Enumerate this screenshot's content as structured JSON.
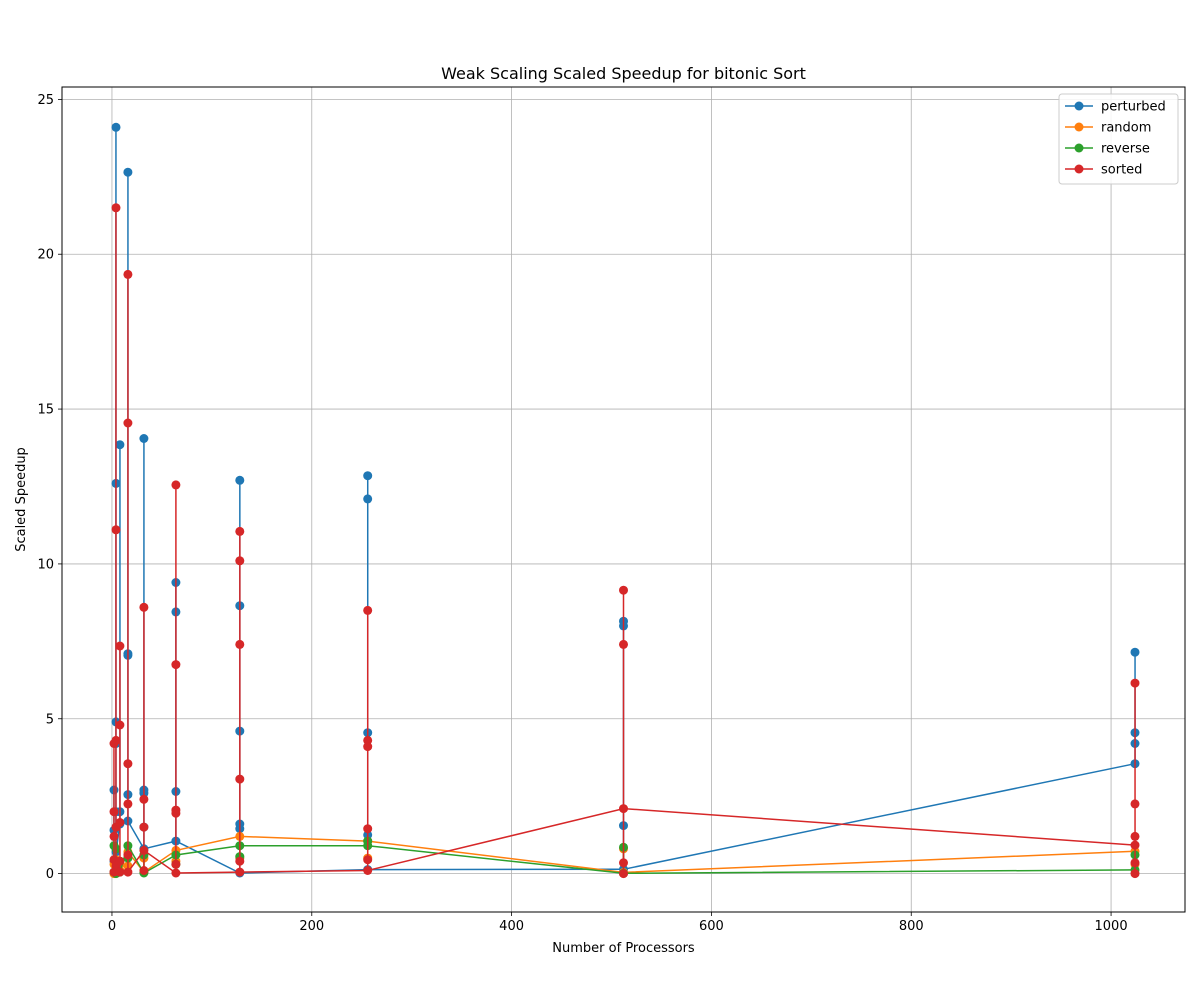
{
  "chart_data": {
    "type": "line",
    "title": "Weak Scaling Scaled Speedup for bitonic Sort",
    "xlabel": "Number of Processors",
    "ylabel": "Scaled Speedup",
    "xlim": [
      -50,
      1074
    ],
    "ylim": [
      -1.24,
      25.4
    ],
    "x_ticks": [
      0,
      200,
      400,
      600,
      800,
      1000
    ],
    "y_ticks": [
      0,
      5,
      10,
      15,
      20,
      25
    ],
    "grid": true,
    "legend_position": "top-right",
    "series": [
      {
        "name": "perturbed",
        "color": "#1f77b4",
        "line": [
          [
            2,
            0.4
          ],
          [
            4,
            0.7
          ],
          [
            8,
            1.6
          ],
          [
            16,
            1.7
          ],
          [
            32,
            0.8
          ],
          [
            64,
            1.05
          ],
          [
            128,
            0.02
          ],
          [
            256,
            0.13
          ],
          [
            512,
            0.14
          ],
          [
            1024,
            3.55
          ]
        ],
        "points": [
          [
            2,
            2.7
          ],
          [
            2,
            1.4
          ],
          [
            2,
            0.4
          ],
          [
            4,
            24.1
          ],
          [
            4,
            12.6
          ],
          [
            4,
            4.9
          ],
          [
            4,
            4.2
          ],
          [
            4,
            2.0
          ],
          [
            4,
            0.7
          ],
          [
            8,
            13.85
          ],
          [
            8,
            2.0
          ],
          [
            8,
            1.6
          ],
          [
            16,
            22.65
          ],
          [
            16,
            7.1
          ],
          [
            16,
            7.05
          ],
          [
            16,
            2.55
          ],
          [
            16,
            1.7
          ],
          [
            32,
            14.05
          ],
          [
            32,
            2.7
          ],
          [
            32,
            2.6
          ],
          [
            32,
            1.5
          ],
          [
            32,
            0.8
          ],
          [
            64,
            9.4
          ],
          [
            64,
            8.45
          ],
          [
            64,
            2.65
          ],
          [
            64,
            1.05
          ],
          [
            128,
            12.7
          ],
          [
            128,
            8.65
          ],
          [
            128,
            4.6
          ],
          [
            128,
            1.6
          ],
          [
            128,
            1.45
          ],
          [
            128,
            0.02
          ],
          [
            256,
            12.85
          ],
          [
            256,
            12.1
          ],
          [
            256,
            4.55
          ],
          [
            256,
            1.25
          ],
          [
            256,
            0.13
          ],
          [
            512,
            8.15
          ],
          [
            512,
            8.0
          ],
          [
            512,
            1.55
          ],
          [
            512,
            0.14
          ],
          [
            1024,
            7.15
          ],
          [
            1024,
            4.55
          ],
          [
            1024,
            4.2
          ],
          [
            1024,
            3.55
          ]
        ]
      },
      {
        "name": "random",
        "color": "#ff7f0e",
        "line": [
          [
            2,
            0.0
          ],
          [
            4,
            0.05
          ],
          [
            8,
            0.3
          ],
          [
            16,
            0.7
          ],
          [
            32,
            0.05
          ],
          [
            64,
            0.75
          ],
          [
            128,
            1.2
          ],
          [
            256,
            1.05
          ],
          [
            512,
            0.04
          ],
          [
            1024,
            0.72
          ]
        ],
        "points": [
          [
            2,
            0.0
          ],
          [
            2,
            0.3
          ],
          [
            4,
            0.05
          ],
          [
            4,
            0.45
          ],
          [
            8,
            0.3
          ],
          [
            8,
            0.1
          ],
          [
            16,
            0.7
          ],
          [
            16,
            0.25
          ],
          [
            32,
            0.05
          ],
          [
            32,
            0.5
          ],
          [
            64,
            0.75
          ],
          [
            64,
            0.4
          ],
          [
            128,
            1.2
          ],
          [
            128,
            0.5
          ],
          [
            256,
            1.05
          ],
          [
            256,
            0.5
          ],
          [
            512,
            0.04
          ],
          [
            512,
            0.8
          ],
          [
            1024,
            0.72
          ],
          [
            1024,
            0.3
          ]
        ]
      },
      {
        "name": "reverse",
        "color": "#2ca02c",
        "line": [
          [
            2,
            0.05
          ],
          [
            4,
            0.0
          ],
          [
            8,
            0.05
          ],
          [
            16,
            0.9
          ],
          [
            32,
            0.02
          ],
          [
            64,
            0.6
          ],
          [
            128,
            0.9
          ],
          [
            256,
            0.9
          ],
          [
            512,
            0.01
          ],
          [
            1024,
            0.12
          ]
        ],
        "points": [
          [
            2,
            0.05
          ],
          [
            2,
            0.9
          ],
          [
            4,
            0.0
          ],
          [
            4,
            0.8
          ],
          [
            8,
            0.05
          ],
          [
            8,
            0.4
          ],
          [
            16,
            0.9
          ],
          [
            16,
            0.5
          ],
          [
            32,
            0.02
          ],
          [
            32,
            0.6
          ],
          [
            64,
            0.6
          ],
          [
            64,
            0.3
          ],
          [
            128,
            0.9
          ],
          [
            128,
            0.55
          ],
          [
            256,
            0.9
          ],
          [
            256,
            1.05
          ],
          [
            512,
            0.01
          ],
          [
            512,
            0.85
          ],
          [
            1024,
            0.12
          ],
          [
            1024,
            0.6
          ]
        ]
      },
      {
        "name": "sorted",
        "color": "#d62728",
        "line": [
          [
            2,
            0.45
          ],
          [
            4,
            0.25
          ],
          [
            8,
            0.05
          ],
          [
            16,
            0.05
          ],
          [
            32,
            0.75
          ],
          [
            64,
            0.02
          ],
          [
            128,
            0.05
          ],
          [
            256,
            0.1
          ],
          [
            512,
            2.1
          ],
          [
            1024,
            0.92
          ]
        ],
        "points": [
          [
            2,
            4.2
          ],
          [
            2,
            2.0
          ],
          [
            2,
            1.2
          ],
          [
            2,
            0.45
          ],
          [
            2,
            0.05
          ],
          [
            4,
            21.5
          ],
          [
            4,
            11.1
          ],
          [
            4,
            4.3
          ],
          [
            4,
            1.5
          ],
          [
            4,
            0.25
          ],
          [
            8,
            7.35
          ],
          [
            8,
            4.8
          ],
          [
            8,
            1.65
          ],
          [
            8,
            0.4
          ],
          [
            8,
            0.05
          ],
          [
            16,
            19.35
          ],
          [
            16,
            14.55
          ],
          [
            16,
            3.55
          ],
          [
            16,
            2.25
          ],
          [
            16,
            0.6
          ],
          [
            16,
            0.05
          ],
          [
            32,
            8.6
          ],
          [
            32,
            2.4
          ],
          [
            32,
            1.5
          ],
          [
            32,
            0.75
          ],
          [
            32,
            0.1
          ],
          [
            64,
            12.55
          ],
          [
            64,
            6.75
          ],
          [
            64,
            2.05
          ],
          [
            64,
            1.95
          ],
          [
            64,
            0.3
          ],
          [
            64,
            0.02
          ],
          [
            128,
            11.05
          ],
          [
            128,
            10.1
          ],
          [
            128,
            7.4
          ],
          [
            128,
            3.05
          ],
          [
            128,
            0.4
          ],
          [
            128,
            0.05
          ],
          [
            256,
            8.5
          ],
          [
            256,
            4.3
          ],
          [
            256,
            4.1
          ],
          [
            256,
            1.45
          ],
          [
            256,
            0.45
          ],
          [
            256,
            0.1
          ],
          [
            512,
            9.15
          ],
          [
            512,
            7.4
          ],
          [
            512,
            2.1
          ],
          [
            512,
            0.35
          ],
          [
            512,
            0.0
          ],
          [
            1024,
            6.15
          ],
          [
            1024,
            2.25
          ],
          [
            1024,
            1.2
          ],
          [
            1024,
            0.92
          ],
          [
            1024,
            0.35
          ],
          [
            1024,
            0.0
          ]
        ]
      }
    ]
  }
}
